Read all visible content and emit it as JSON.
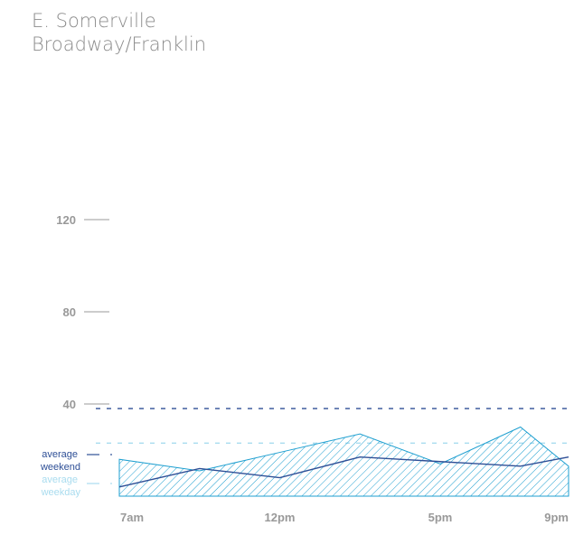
{
  "header": {
    "line1": "E. Somerville",
    "line2": "Broadway/Franklin"
  },
  "legend": {
    "weekend": [
      "average",
      "weekend"
    ],
    "weekday": [
      "average",
      "weekday"
    ]
  },
  "colors": {
    "weekend": "#2e4f96",
    "weekday": "#1e9fd0",
    "weekday_avg_line": "#a9dcef",
    "axis_text": "#999999",
    "title": "#8c8c8c"
  },
  "chart_data": {
    "type": "line",
    "title": "",
    "xlabel": "",
    "ylabel": "",
    "ylim": [
      0,
      120
    ],
    "yticks": [
      {
        "value": 120,
        "label": "120"
      },
      {
        "value": 80,
        "label": "80"
      },
      {
        "value": 40,
        "label": "40"
      }
    ],
    "xticks": [
      {
        "x": 0,
        "label": "7am"
      },
      {
        "x": 5,
        "label": "12pm"
      },
      {
        "x": 10,
        "label": "5pm"
      },
      {
        "x": 14,
        "label": "9pm"
      }
    ],
    "series": [
      {
        "name": "average weekday",
        "style": "hatched-area",
        "x": [
          0,
          2.5,
          5,
          7.5,
          10,
          12.5,
          14
        ],
        "values": [
          16,
          11,
          19,
          27,
          14,
          30,
          13
        ],
        "average": 23
      },
      {
        "name": "average weekend",
        "style": "line",
        "x": [
          0,
          2.5,
          5,
          7.5,
          10,
          12.5,
          14
        ],
        "values": [
          4,
          12,
          8,
          17,
          15,
          13,
          17
        ],
        "average": 38
      }
    ]
  }
}
